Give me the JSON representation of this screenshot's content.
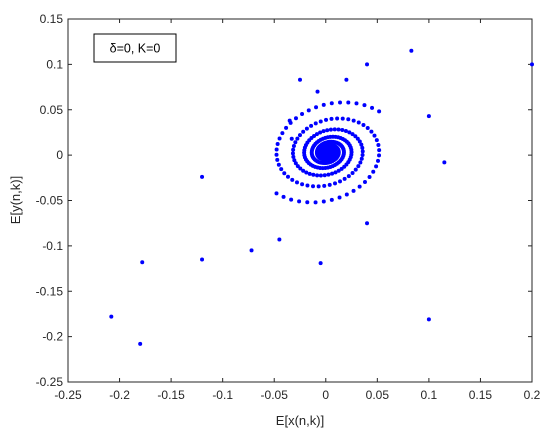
{
  "chart_data": {
    "type": "scatter",
    "title": "",
    "xlabel": "E[x(n,k)]",
    "ylabel": "E[y(n,k)]",
    "xlim": [
      -0.25,
      0.2
    ],
    "ylim": [
      -0.25,
      0.15
    ],
    "xticks": [
      -0.25,
      -0.2,
      -0.15,
      -0.1,
      -0.05,
      0,
      0.05,
      0.1,
      0.15,
      0.2
    ],
    "xtick_labels": [
      "-0.25",
      "-0.2",
      "-0.15",
      "-0.1",
      "-0.05",
      "0",
      "0.05",
      "0.1",
      "0.15",
      "0.2"
    ],
    "yticks": [
      -0.25,
      -0.2,
      -0.15,
      -0.1,
      -0.05,
      0,
      0.05,
      0.1,
      0.15
    ],
    "ytick_labels": [
      "-0.25",
      "-0.2",
      "-0.15",
      "-0.1",
      "-0.05",
      "0",
      "0.05",
      "0.1",
      "0.15"
    ],
    "grid": false,
    "legend": {
      "text": "δ=0, K=0",
      "placement": "top-left"
    },
    "marker_color": "#0000ff",
    "outer_points": [
      [
        0.2,
        0.1
      ],
      [
        0.083,
        0.115
      ],
      [
        0.04,
        0.1
      ],
      [
        0.1,
        -0.181
      ],
      [
        -0.208,
        -0.178
      ],
      [
        -0.18,
        -0.208
      ],
      [
        -0.178,
        -0.118
      ],
      [
        -0.005,
        -0.119
      ],
      [
        0.115,
        -0.008
      ],
      [
        -0.12,
        -0.115
      ],
      [
        -0.12,
        -0.024
      ],
      [
        0.1,
        0.043
      ],
      [
        -0.025,
        0.083
      ],
      [
        0.02,
        0.083
      ],
      [
        0.04,
        -0.075
      ],
      [
        -0.045,
        -0.093
      ],
      [
        -0.072,
        -0.105
      ],
      [
        -0.008,
        0.07
      ],
      [
        -0.035,
        0.038
      ],
      [
        -0.033,
        0.018
      ]
    ],
    "spiral_series": [
      {
        "r0": 0.09,
        "theta0": 0.35,
        "decay": 0.016,
        "dtheta": 0.13,
        "n": 220
      },
      {
        "r0": 0.09,
        "theta0": 3.49,
        "decay": 0.016,
        "dtheta": 0.13,
        "n": 220
      }
    ],
    "spiral_transform": {
      "sx": 0.76,
      "sy": 0.64,
      "rotation": 0.44,
      "cx": 0.002,
      "cy": 0.003
    }
  }
}
